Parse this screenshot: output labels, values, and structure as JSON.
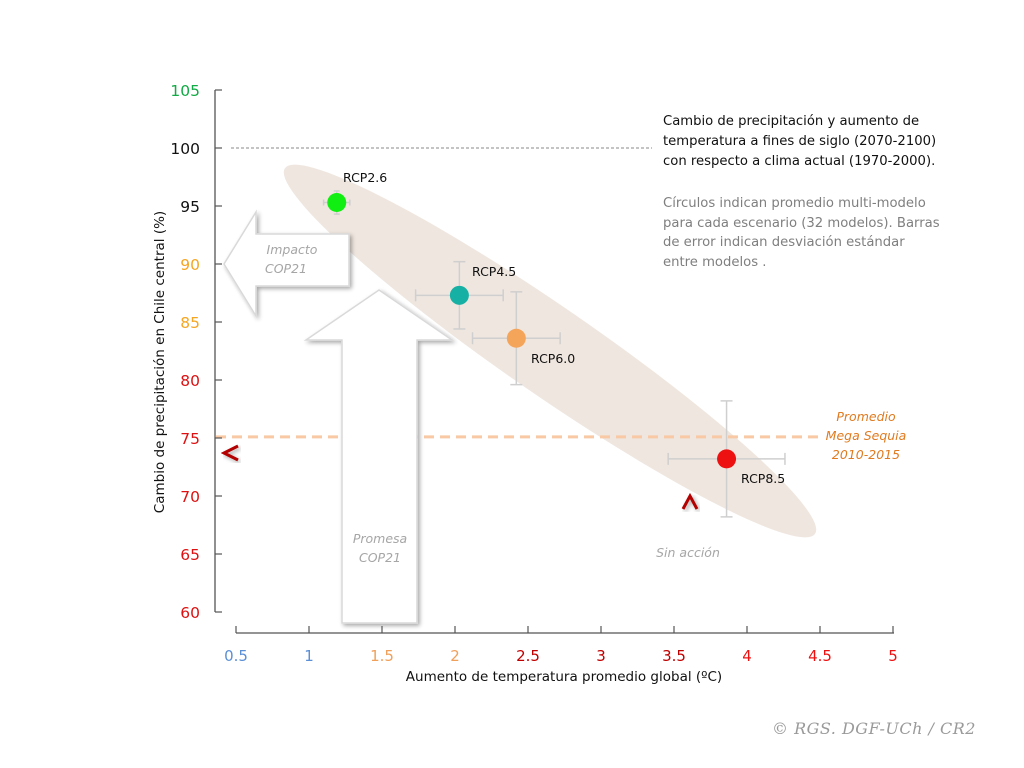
{
  "chart_data": {
    "type": "scatter",
    "title": "Cambio de precipitación y aumento de temperatura a fines de siglo (2070-2100) con respecto a clima actual (1970-2000).",
    "note": "Círculos indican promedio multi-modelo para cada escenario (32 modelos). Barras de error indican desviación estándar entre modelos .",
    "title_lines": [
      "Cambio de precipitación y aumento de",
      "temperatura a fines de siglo (2070-2100)",
      "con respecto a clima actual (1970-2000)."
    ],
    "note_lines": [
      "Círculos indican promedio multi-modelo",
      "para cada escenario (32 modelos). Barras",
      "de error indican desviación estándar",
      "entre modelos ."
    ],
    "xlabel": "Aumento de temperatura promedio global (ºC)",
    "ylabel": "Cambio de precipitación en Chile central (%)",
    "xlim": [
      0.5,
      5
    ],
    "ylim": [
      60,
      105
    ],
    "grid": false,
    "x_ticks": [
      {
        "label": "0.5",
        "value": 0.5,
        "color": "#5b8fd6"
      },
      {
        "label": "1",
        "value": 1,
        "color": "#5b8fd6"
      },
      {
        "label": "1.5",
        "value": 1.5,
        "color": "#f0a05a"
      },
      {
        "label": "2",
        "value": 2,
        "color": "#f0a05a"
      },
      {
        "label": "2.5",
        "value": 2.5,
        "color": "#c00000"
      },
      {
        "label": "3",
        "value": 3,
        "color": "#c00000"
      },
      {
        "label": "3.5",
        "value": 3.5,
        "color": "#c00000"
      },
      {
        "label": "4",
        "value": 4,
        "color": "#ee1111"
      },
      {
        "label": "4.5",
        "value": 4.5,
        "color": "#ee1111"
      },
      {
        "label": "5",
        "value": 5,
        "color": "#ee1111"
      }
    ],
    "y_ticks": [
      {
        "label": "105",
        "value": 105,
        "color": "#11aa44"
      },
      {
        "label": "100",
        "value": 100,
        "color": "#111111"
      },
      {
        "label": "95",
        "value": 95,
        "color": "#111111"
      },
      {
        "label": "90",
        "value": 90,
        "color": "#f5a623"
      },
      {
        "label": "85",
        "value": 85,
        "color": "#f5a623"
      },
      {
        "label": "80",
        "value": 80,
        "color": "#dd1111"
      },
      {
        "label": "75",
        "value": 75,
        "color": "#dd1111"
      },
      {
        "label": "70",
        "value": 70,
        "color": "#dd1111"
      },
      {
        "label": "65",
        "value": 65,
        "color": "#dd1111"
      },
      {
        "label": "60",
        "value": 60,
        "color": "#dd1111"
      }
    ],
    "series": [
      {
        "name": "RCP2.6",
        "x": 1.19,
        "y": 95.3,
        "x_err": 0.09,
        "y_err": 1.0,
        "color": "#11ee11"
      },
      {
        "name": "RCP4.5",
        "x": 2.03,
        "y": 87.3,
        "x_err": 0.3,
        "y_err": 2.9,
        "color": "#17b0a4"
      },
      {
        "name": "RCP6.0",
        "x": 2.42,
        "y": 83.6,
        "x_err": 0.3,
        "y_err": 4.0,
        "color": "#f5a55a"
      },
      {
        "name": "RCP8.5",
        "x": 3.86,
        "y": 73.2,
        "x_err": 0.4,
        "y_err": 5.0,
        "color": "#ee1111"
      }
    ],
    "reference_lines": [
      {
        "name": "100% baseline",
        "y": 100,
        "x_from": 0.5,
        "x_to": 3.85,
        "color": "#888888",
        "style": "dotted"
      },
      {
        "name": "Promedio Mega Sequia 2010-2015",
        "y": 75.1,
        "x_from": 0.5,
        "x_to": 4.9,
        "color": "#f8c9a4",
        "style": "dashed"
      }
    ],
    "annotations": [
      {
        "text_lines": [
          "Promedio",
          "Mega Sequia",
          "2010-2015"
        ],
        "color": "#e07b20"
      },
      {
        "text_lines": [
          "Impacto",
          "COP21"
        ],
        "color": "#a6a6a6"
      },
      {
        "text_lines": [
          "Promesa",
          "COP21"
        ],
        "color": "#a6a6a6"
      },
      {
        "text_lines": [
          "Sin acción"
        ],
        "color": "#a6a6a6"
      }
    ],
    "arrow_color": "#b30000",
    "ellipse_color": "#efe6df"
  },
  "credit": "© RGS. DGF-UCh / CR2"
}
